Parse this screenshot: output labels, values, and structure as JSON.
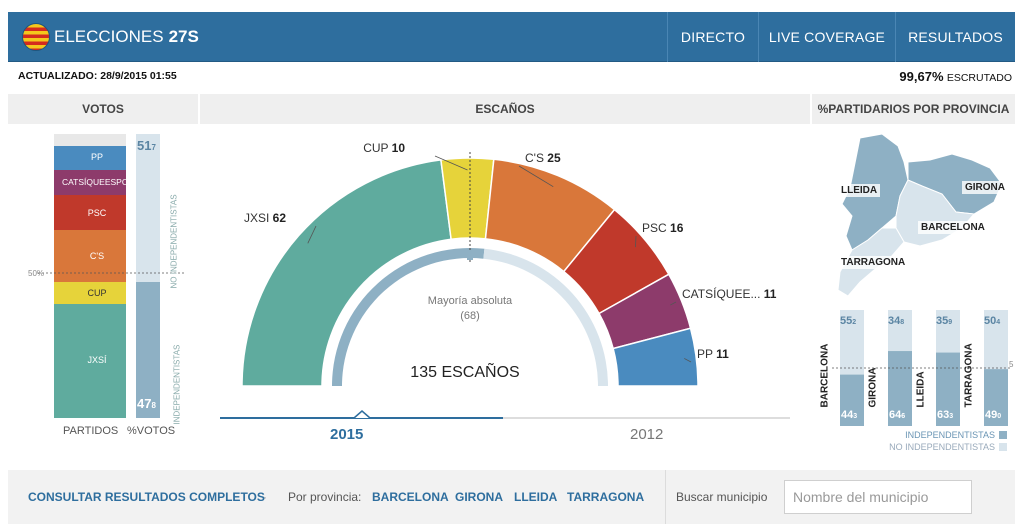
{
  "header": {
    "title": "ELECCIONES",
    "title_bold": "27S",
    "nav": [
      "DIRECTO",
      "LIVE COVERAGE",
      "RESULTADOS"
    ]
  },
  "status": {
    "updated": "ACTUALIZADO: 28/9/2015 01:55",
    "counted_value": "99,67%",
    "counted_label": "ESCRUTADO"
  },
  "votes_panel": {
    "title": "VOTOS",
    "parties": [
      {
        "name": "PP",
        "color": "#4a8bbf"
      },
      {
        "name": "CATSÍQUEESPOT",
        "color": "#8d3b6b"
      },
      {
        "name": "PSC",
        "color": "#c0392b"
      },
      {
        "name": "C'S",
        "color": "#d9773a"
      },
      {
        "name": "CUP",
        "color": "#e6d33a"
      },
      {
        "name": "JXSÍ",
        "color": "#5fab9e"
      }
    ],
    "fifty_label": "50%",
    "no_indep_value": "51",
    "no_indep_decimal": "7",
    "no_indep_label": "NO INDEPENDENTISTAS",
    "indep_value": "47",
    "indep_decimal": "8",
    "indep_label": "INDEPENDENTISTAS",
    "col_partidos": "PARTIDOS",
    "col_votos": "%VOTOS"
  },
  "seats_panel": {
    "title": "ESCAÑOS",
    "total_label": "135 ESCAÑOS",
    "majority_label": "Mayoría absoluta",
    "majority_value": "(68)",
    "tabs": [
      "2015",
      "2012"
    ],
    "active_tab": "2015"
  },
  "chart_data": {
    "type": "pie",
    "title": "ESCAÑOS",
    "subtitle": "135 ESCAÑOS",
    "total": 135,
    "majority": 68,
    "categories": [
      "JXSI",
      "CUP",
      "C'S",
      "PSC",
      "CATSÍQUEE...",
      "PP"
    ],
    "values": [
      62,
      10,
      25,
      16,
      11,
      11
    ],
    "colors": [
      "#5fab9e",
      "#e6d33a",
      "#d9773a",
      "#c0392b",
      "#8d3b6b",
      "#4a8bbf"
    ],
    "inner_ring": {
      "independentistas": 72,
      "no_independentistas": 63,
      "colors": [
        "#8eb0c4",
        "#d8e4ec"
      ]
    }
  },
  "province_panel": {
    "title": "%PARTIDARIOS POR PROVINCIA",
    "map_labels": [
      "LLEIDA",
      "GIRONA",
      "BARCELONA",
      "TARRAGONA"
    ],
    "provinces": [
      {
        "name": "BARCELONA",
        "no_indep": "55",
        "no_indep_dec": "2",
        "indep": "44",
        "indep_dec": "3",
        "indep_pct": 44.3
      },
      {
        "name": "GIRONA",
        "no_indep": "34",
        "no_indep_dec": "8",
        "indep": "64",
        "indep_dec": "6",
        "indep_pct": 64.6
      },
      {
        "name": "LLEIDA",
        "no_indep": "35",
        "no_indep_dec": "9",
        "indep": "63",
        "indep_dec": "3",
        "indep_pct": 63.3
      },
      {
        "name": "TARRAGONA",
        "no_indep": "50",
        "no_indep_dec": "4",
        "indep": "49",
        "indep_dec": "0",
        "indep_pct": 49.0
      }
    ],
    "fifty_label": "5",
    "legend_indep": "INDEPENDENTISTAS",
    "legend_no_indep": "NO INDEPENDENTISTAS"
  },
  "footer": {
    "full_results": "CONSULTAR RESULTADOS COMPLETOS",
    "dot": "·",
    "by_province": "Por provincia:",
    "province_links": [
      "BARCELONA",
      "GIRONA",
      "LLEIDA",
      "TARRAGONA"
    ],
    "search_label": "Buscar municipio",
    "search_placeholder": "Nombre del municipio"
  }
}
